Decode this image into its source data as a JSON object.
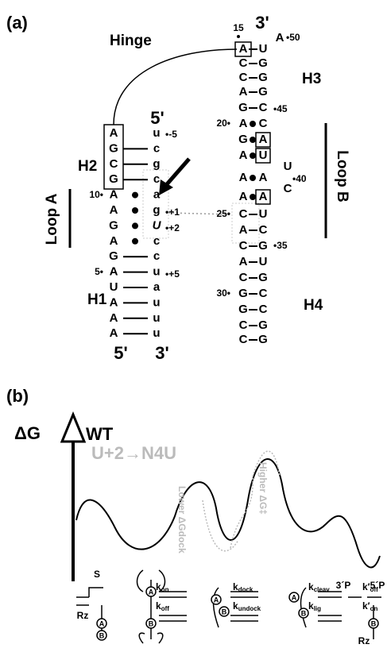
{
  "panel_a": {
    "label": "(a)",
    "hinge_label": "Hinge",
    "domain_labels": [
      "H1",
      "H2",
      "H3",
      "H4"
    ],
    "loop_labels": [
      "Loop A",
      "Loop B"
    ],
    "end_labels": [
      "5'",
      "3'",
      "5'",
      "3'"
    ],
    "left_helix_5_strand": [
      "A",
      "G",
      "C",
      "G",
      "A",
      "A",
      "G",
      "A",
      "G",
      "A",
      "U",
      "A",
      "A",
      "A"
    ],
    "left_helix_3_strand": [
      "u",
      "c",
      "g",
      "c",
      "a",
      "g",
      "U",
      "c",
      "c",
      "u",
      "a",
      "u",
      "u",
      "u"
    ],
    "right_helix_left_strand": [
      "A",
      "C",
      "C",
      "A",
      "G",
      "A",
      "G",
      "A",
      "A",
      "A",
      "C",
      "A",
      "C",
      "A",
      "C",
      "G",
      "G",
      "C",
      "C"
    ],
    "right_helix_right_strand": [
      "U",
      "G",
      "G",
      "G",
      "C",
      "C",
      "A",
      "U",
      "A",
      "A",
      "U",
      "C",
      "G",
      "U",
      "G",
      "C",
      "C",
      "G",
      "G"
    ],
    "unpaired_bases": [
      "U",
      "C",
      "A"
    ],
    "position_labels": [
      "15",
      "•50",
      "•45",
      "20•",
      "•40",
      "25•",
      "•35",
      "30•",
      "•-5",
      "10•",
      "•+1",
      "•+2",
      "5•",
      "•+5"
    ]
  },
  "panel_b": {
    "label": "(b)",
    "axis_label": "ΔG",
    "wt_label": "WT",
    "mutant_label": "U+2→N4U",
    "annotations": [
      "Lower ΔGdock",
      "Higher ΔG‡"
    ],
    "substrate_label": "S",
    "ribozyme_label": "Rz",
    "domain_letters": [
      "A",
      "B"
    ],
    "rates": [
      {
        "forward": {
          "symbol": "k",
          "sub": "on"
        },
        "reverse": {
          "symbol": "k",
          "sub": "off"
        }
      },
      {
        "forward": {
          "symbol": "k",
          "sub": "dock"
        },
        "reverse": {
          "symbol": "k",
          "sub": "undock"
        }
      },
      {
        "forward": {
          "symbol": "k",
          "sub": "cleav"
        },
        "reverse": {
          "symbol": "k",
          "sub": "lig"
        }
      },
      {
        "forward": {
          "symbol": "k′",
          "sub": "off"
        },
        "reverse": {
          "symbol": "k′",
          "sub": "on"
        }
      }
    ],
    "product_labels": [
      "3´P",
      "5´P"
    ]
  }
}
